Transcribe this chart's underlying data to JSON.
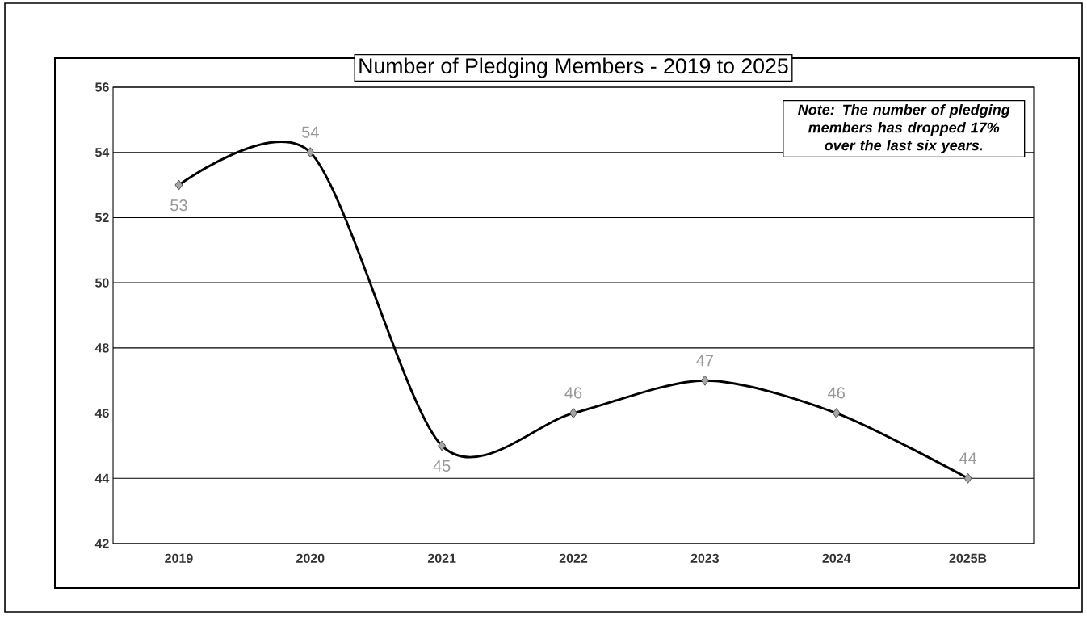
{
  "chart_data": {
    "type": "line",
    "title": "Number of Pledging Members - 2019 to 2025",
    "categories": [
      "2019",
      "2020",
      "2021",
      "2022",
      "2023",
      "2024",
      "2025B"
    ],
    "series": [
      {
        "color": "#000000",
        "values": [
          53,
          54,
          45,
          46,
          47,
          46,
          44
        ]
      }
    ],
    "ylim": [
      42,
      56
    ],
    "yticks": [
      42,
      44,
      46,
      48,
      50,
      52,
      54,
      56
    ],
    "grid": "y",
    "marker": "diamond",
    "line_style": "solid",
    "data_labels": true,
    "annotations": [
      "**Note:** The number of pledging members has dropped 17% over the last six years."
    ]
  }
}
